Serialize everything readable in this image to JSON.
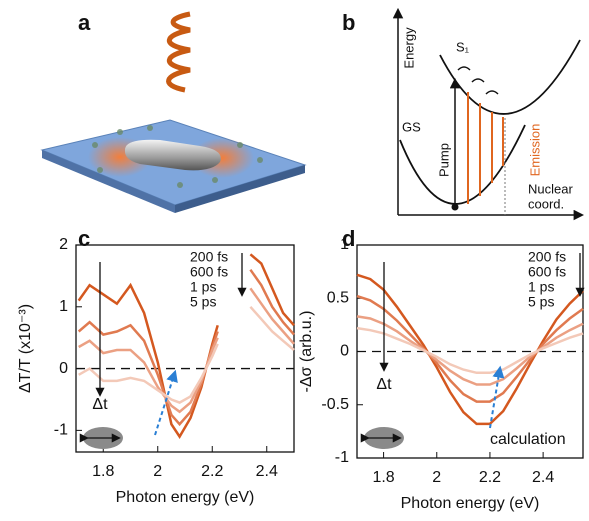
{
  "panel_labels": [
    "a",
    "b",
    "c",
    "d"
  ],
  "diagram_b": {
    "y_axis_label": "Energy",
    "excited_state": "S₁",
    "ground_state": "GS",
    "pump": "Pump",
    "emission": "Emission",
    "x_axis_label": [
      "Nuclear",
      "coord."
    ]
  },
  "chart_data": [
    {
      "type": "line",
      "x_label": "Photon energy (eV)",
      "y_label": "ΔT/T (x10⁻³)",
      "x": [
        1.71,
        1.75,
        1.8,
        1.85,
        1.9,
        1.95,
        2.0,
        2.05,
        2.08,
        2.12,
        2.16,
        2.2,
        2.22,
        2.3,
        2.34,
        2.38,
        2.42,
        2.46,
        2.5
      ],
      "series": [
        {
          "name": "200 fs",
          "color": "#d4581f",
          "values": [
            1.1,
            1.35,
            1.2,
            1.05,
            1.35,
            0.9,
            0.1,
            -0.9,
            -1.1,
            -0.8,
            -0.3,
            0.4,
            0.7,
            null,
            1.85,
            1.7,
            1.3,
            0.9,
            0.7
          ]
        },
        {
          "name": "600 fs",
          "color": "#e07a50",
          "values": [
            0.6,
            0.75,
            0.55,
            0.6,
            0.7,
            0.45,
            -0.1,
            -0.75,
            -0.9,
            -0.7,
            -0.25,
            0.35,
            0.6,
            null,
            1.6,
            1.35,
            1.0,
            0.75,
            0.55
          ]
        },
        {
          "name": "1 ps",
          "color": "#eba083",
          "values": [
            0.35,
            0.45,
            0.25,
            0.3,
            0.3,
            0.1,
            -0.3,
            -0.6,
            -0.7,
            -0.55,
            -0.2,
            0.3,
            0.5,
            null,
            1.3,
            1.05,
            0.8,
            0.6,
            0.4
          ]
        },
        {
          "name": "5 ps",
          "color": "#f3c9b8",
          "values": [
            -0.1,
            0.0,
            -0.2,
            -0.2,
            -0.15,
            -0.2,
            -0.35,
            -0.5,
            -0.55,
            -0.45,
            -0.15,
            0.2,
            0.4,
            null,
            1.0,
            0.8,
            0.6,
            0.45,
            0.3
          ]
        }
      ],
      "xlim": [
        1.7,
        2.5
      ],
      "ylim": [
        -1.35,
        2
      ],
      "xticks": [
        1.8,
        2,
        2.2,
        2.4
      ],
      "yticks": [
        -1,
        0,
        1,
        2
      ],
      "zero_line": true,
      "annotations": [
        "Δt"
      ]
    },
    {
      "type": "line",
      "x_label": "Photon energy (eV)",
      "y_label": "-Δσ (arb.u.)",
      "x": [
        1.7,
        1.75,
        1.8,
        1.85,
        1.9,
        1.95,
        2.0,
        2.05,
        2.1,
        2.15,
        2.2,
        2.25,
        2.3,
        2.35,
        2.4,
        2.45,
        2.5,
        2.55
      ],
      "series": [
        {
          "name": "200 fs",
          "color": "#d4581f",
          "values": [
            0.72,
            0.68,
            0.58,
            0.42,
            0.24,
            0.06,
            -0.15,
            -0.38,
            -0.57,
            -0.68,
            -0.68,
            -0.56,
            -0.35,
            -0.12,
            0.1,
            0.3,
            0.45,
            0.57
          ]
        },
        {
          "name": "600 fs",
          "color": "#e07a50",
          "values": [
            0.52,
            0.48,
            0.4,
            0.29,
            0.16,
            0.03,
            -0.11,
            -0.27,
            -0.4,
            -0.47,
            -0.47,
            -0.39,
            -0.24,
            -0.08,
            0.07,
            0.2,
            0.31,
            0.4
          ]
        },
        {
          "name": "1 ps",
          "color": "#eba083",
          "values": [
            0.33,
            0.31,
            0.26,
            0.19,
            0.1,
            0.02,
            -0.08,
            -0.18,
            -0.26,
            -0.31,
            -0.31,
            -0.26,
            -0.16,
            -0.05,
            0.04,
            0.13,
            0.2,
            0.26
          ]
        },
        {
          "name": "5 ps",
          "color": "#f3c9b8",
          "values": [
            0.22,
            0.2,
            0.17,
            0.12,
            0.07,
            0.01,
            -0.05,
            -0.12,
            -0.17,
            -0.2,
            -0.2,
            -0.17,
            -0.1,
            -0.03,
            0.03,
            0.08,
            0.13,
            0.17
          ]
        }
      ],
      "xlim": [
        1.7,
        2.55
      ],
      "ylim": [
        -1,
        1
      ],
      "xticks": [
        1.8,
        2,
        2.2,
        2.4
      ],
      "yticks": [
        -1,
        -0.5,
        0,
        0.5,
        1
      ],
      "zero_line": true,
      "annotations": [
        "Δt",
        "calculation"
      ]
    }
  ]
}
